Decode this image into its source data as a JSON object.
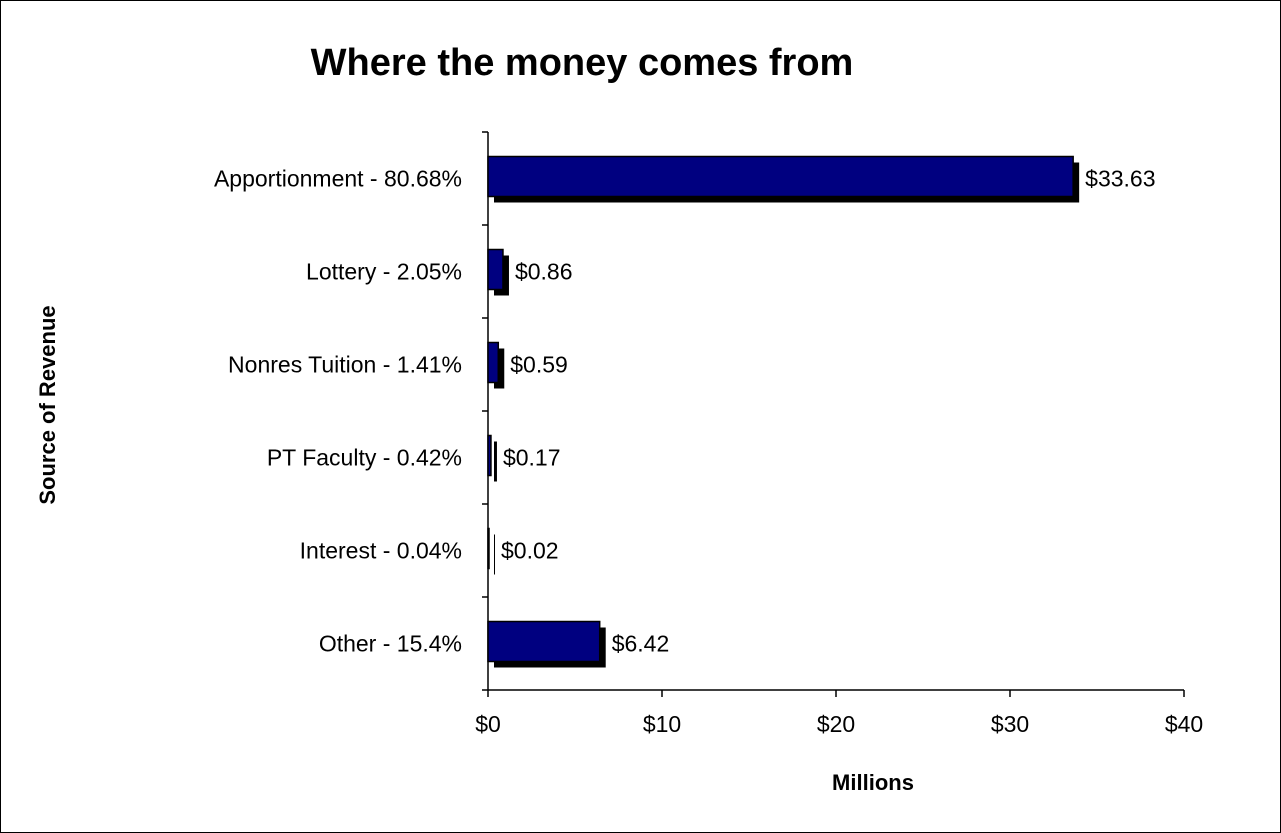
{
  "chart_data": {
    "type": "bar",
    "orientation": "horizontal",
    "title": "Where the money comes from",
    "xlabel": "Millions",
    "ylabel": "Source of Revenue",
    "categories": [
      "Apportionment - 80.68%",
      "Lottery - 2.05%",
      "Nonres Tuition - 1.41%",
      "PT Faculty - 0.42%",
      "Interest - 0.04%",
      "Other - 15.4%"
    ],
    "values": [
      33.63,
      0.86,
      0.59,
      0.17,
      0.02,
      6.42
    ],
    "data_labels": [
      "$33.63",
      "$0.86",
      "$0.59",
      "$0.17",
      "$0.02",
      "$6.42"
    ],
    "xlim": [
      0,
      40
    ],
    "x_ticks": [
      0,
      10,
      20,
      30,
      40
    ],
    "x_tick_labels": [
      "$0",
      "$10",
      "$20",
      "$30",
      "$40"
    ],
    "grid": false,
    "legend": "none",
    "colors": {
      "bar_fill": "#000080",
      "bar_shadow": "#000000",
      "axis": "#000000",
      "text": "#000000"
    }
  }
}
